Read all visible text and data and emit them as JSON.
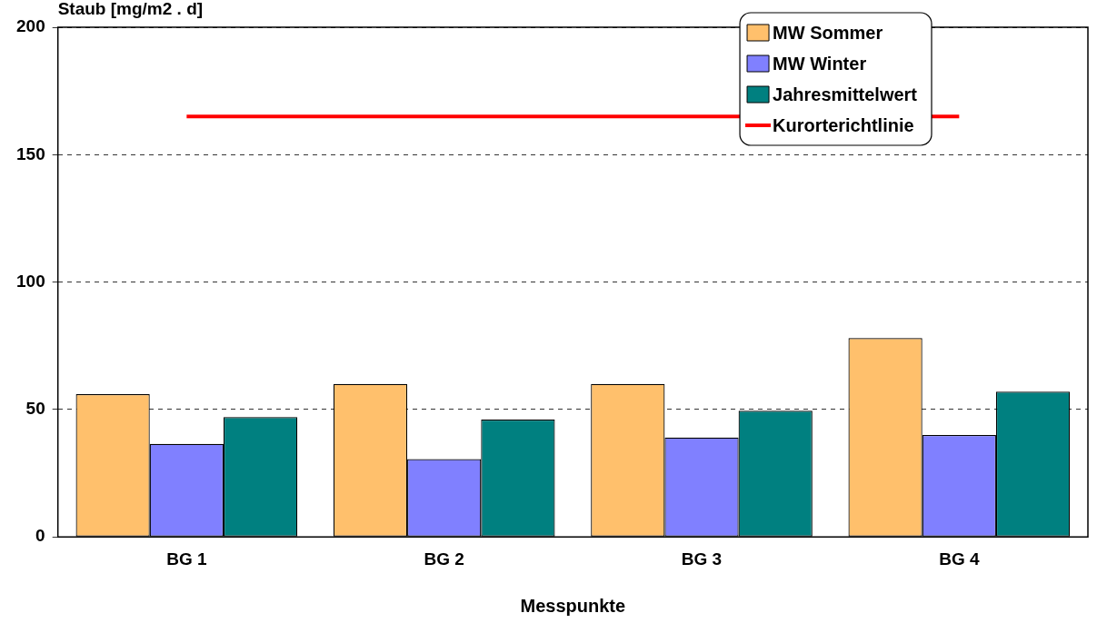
{
  "chart_data": {
    "type": "bar",
    "xlabel": "Messpunkte",
    "ylabel": "Staub [mg/m2 . d]",
    "categories": [
      "BG 1",
      "BG 2",
      "BG 3",
      "BG 4"
    ],
    "series": [
      {
        "name": "MW Sommer",
        "color": "#ffc06c",
        "values": [
          56,
          60,
          60,
          78
        ]
      },
      {
        "name": "MW Winter",
        "color": "#8080ff",
        "values": [
          36.5,
          30.5,
          39,
          40
        ]
      },
      {
        "name": "Jahresmittelwert",
        "color": "#008080",
        "values": [
          47,
          46,
          49.5,
          57
        ]
      },
      {
        "name": "Kurorterichtlinie",
        "type": "line",
        "color": "#ff0000",
        "values": [
          165,
          165,
          165,
          165
        ]
      }
    ],
    "ylim": [
      0,
      200
    ],
    "yticks": [
      0,
      50,
      100,
      150,
      200
    ],
    "grid": "y",
    "legend": "top right",
    "marker": "none",
    "line_style": "solid"
  }
}
